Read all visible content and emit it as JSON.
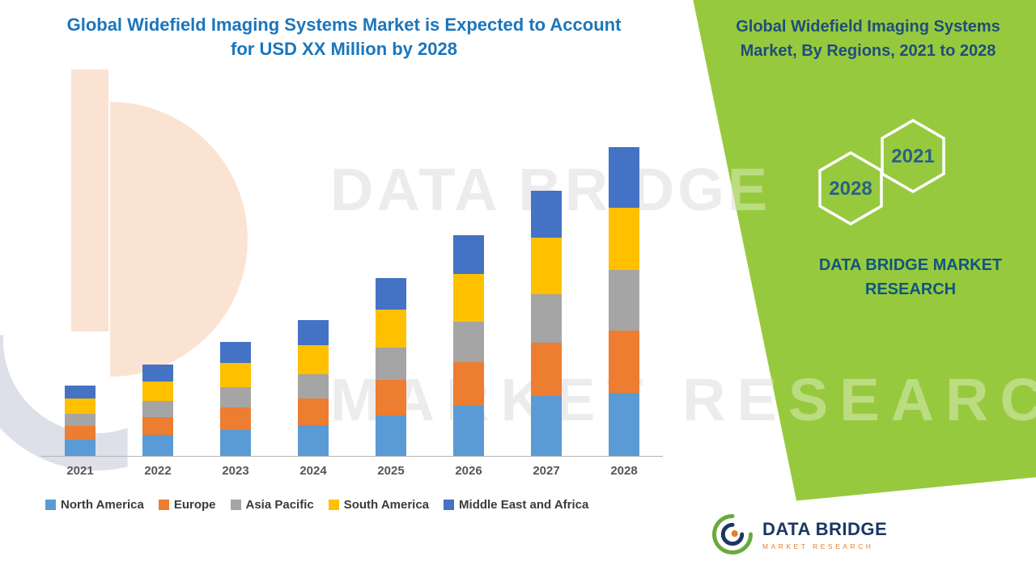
{
  "header": {
    "title_line1": "Global Widefield Imaging Systems Market is Expected to Account",
    "title_line2": "for USD XX Million by 2028"
  },
  "side_panel": {
    "title_line1": "Global Widefield Imaging Systems",
    "title_line2": "Market, By Regions, 2021 to 2028",
    "hexagons": {
      "back_year": "2028",
      "front_year": "2021"
    },
    "brand_line1": "DATA BRIDGE MARKET",
    "brand_line2": "RESEARCH"
  },
  "watermark": {
    "line1": "DATA BRIDGE",
    "line2": "MARKET RESEARCH"
  },
  "footer_logo": {
    "brand": "DATA BRIDGE",
    "tagline": "MARKET RESEARCH"
  },
  "colors": {
    "panel_green": "#97C93E",
    "title_blue": "#1B76BC",
    "side_title_blue": "#1E4E79"
  },
  "chart_data": {
    "type": "bar",
    "stacked": true,
    "title": "Global Widefield Imaging Systems Market, By Regions, 2021 to 2028",
    "categories": [
      "2021",
      "2022",
      "2023",
      "2024",
      "2025",
      "2026",
      "2027",
      "2028"
    ],
    "series": [
      {
        "name": "North America",
        "color": "#5B9BD5",
        "values": [
          20,
          26,
          32,
          38,
          50,
          62,
          74,
          78
        ]
      },
      {
        "name": "Europe",
        "color": "#ED7D31",
        "values": [
          17,
          22,
          28,
          33,
          44,
          54,
          66,
          77
        ]
      },
      {
        "name": "Asia Pacific",
        "color": "#A5A5A5",
        "values": [
          15,
          20,
          25,
          30,
          40,
          50,
          60,
          75
        ]
      },
      {
        "name": "South America",
        "color": "#FFC000",
        "values": [
          19,
          24,
          30,
          36,
          47,
          59,
          70,
          77
        ]
      },
      {
        "name": "Middle East and Africa",
        "color": "#4472C4",
        "values": [
          16,
          21,
          26,
          31,
          39,
          48,
          58,
          75
        ]
      }
    ],
    "totals": [
      87,
      113,
      141,
      168,
      220,
      273,
      328,
      382
    ],
    "values_unit": "relative height units (no value axis shown, values given as USD XX Million)",
    "y_axis_visible": false,
    "grid": false,
    "legend_position": "bottom"
  }
}
